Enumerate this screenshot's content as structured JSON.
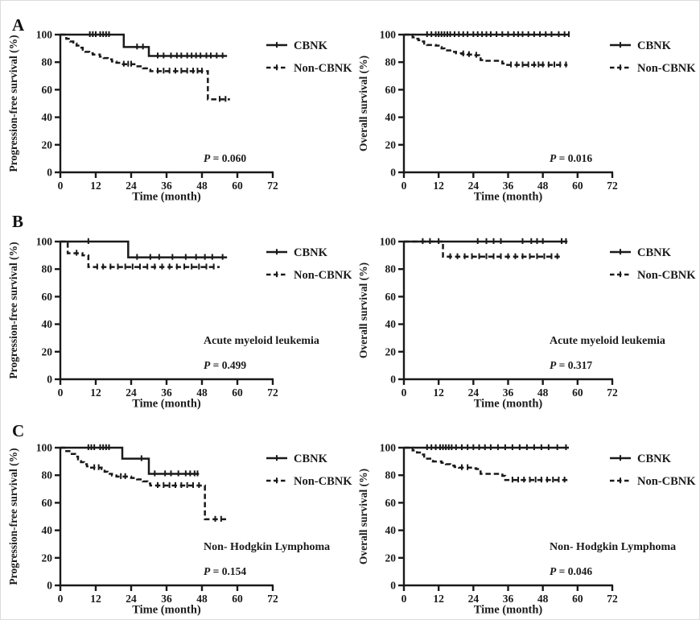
{
  "panels": [
    {
      "letter": "A"
    },
    {
      "letter": "B"
    },
    {
      "letter": "C"
    }
  ],
  "colors": {
    "ink": "#1a1a1a",
    "background": "#ffffff",
    "frame_border": "#dcdcdc"
  },
  "chart_data": [
    {
      "type": "line",
      "subtype": "kaplan-meier-step",
      "panel": "A",
      "column": "left",
      "ylabel": "Progression-free survival (%)",
      "xlabel": "Time (month)",
      "xlim": [
        0,
        72
      ],
      "ylim": [
        0,
        100
      ],
      "xticks": [
        0,
        12,
        24,
        36,
        48,
        60,
        72
      ],
      "yticks": [
        0,
        20,
        40,
        60,
        80,
        100
      ],
      "grid": false,
      "legend_position": "right-of-plot",
      "annotation": "",
      "p_label": "P = 0.060",
      "series": [
        {
          "name": "CBNK",
          "line": "solid",
          "steps": [
            [
              0,
              100
            ],
            [
              21.5,
              100
            ],
            [
              21.5,
              91
            ],
            [
              30,
              91
            ],
            [
              30,
              84.5
            ],
            [
              56.5,
              84.5
            ]
          ],
          "censor_times": [
            10,
            11,
            12,
            13.5,
            14.5,
            15.5,
            16.5,
            26,
            28,
            33,
            35,
            37.5,
            39.5,
            41,
            43,
            44.5,
            46,
            47.5,
            49.5,
            51,
            53,
            55
          ]
        },
        {
          "name": "Non-CBNK",
          "line": "dashed",
          "steps": [
            [
              0,
              100
            ],
            [
              2,
              97
            ],
            [
              3.3,
              95
            ],
            [
              4.4,
              93.5
            ],
            [
              5.5,
              92
            ],
            [
              6.5,
              90.5
            ],
            [
              7.6,
              89
            ],
            [
              8.5,
              87.5
            ],
            [
              9.8,
              86.5
            ],
            [
              11,
              85.5
            ],
            [
              13.4,
              84
            ],
            [
              14.7,
              83
            ],
            [
              16.1,
              82
            ],
            [
              17.5,
              80.5
            ],
            [
              19,
              79.5
            ],
            [
              20.5,
              78.5
            ],
            [
              25.5,
              77
            ],
            [
              28,
              75.5
            ],
            [
              29.8,
              74.5
            ],
            [
              30.5,
              73.5
            ],
            [
              50,
              73.5
            ],
            [
              50,
              53
            ],
            [
              57.5,
              53
            ]
          ],
          "censor_times": [
            21.5,
            23,
            24,
            33,
            35,
            37,
            39,
            41,
            43,
            45,
            46.5,
            48,
            54,
            56
          ]
        }
      ]
    },
    {
      "type": "line",
      "subtype": "kaplan-meier-step",
      "panel": "A",
      "column": "right",
      "ylabel": "Overall survival (%)",
      "xlabel": "Time (month)",
      "xlim": [
        0,
        72
      ],
      "ylim": [
        0,
        100
      ],
      "xticks": [
        0,
        12,
        24,
        36,
        48,
        60,
        72
      ],
      "yticks": [
        0,
        20,
        40,
        60,
        80,
        100
      ],
      "grid": false,
      "legend_position": "right-of-plot",
      "annotation": "",
      "p_label": "P = 0.016",
      "series": [
        {
          "name": "CBNK",
          "line": "solid",
          "steps": [
            [
              0,
              100
            ],
            [
              57,
              100
            ]
          ],
          "censor_times": [
            8,
            9.5,
            11,
            12,
            13,
            14,
            15,
            16,
            17.5,
            19,
            20.5,
            22,
            24,
            25.5,
            27,
            28.5,
            30,
            32,
            34,
            36,
            38,
            39.5,
            41,
            43,
            45,
            47,
            49,
            51,
            53.5,
            55.5,
            57
          ]
        },
        {
          "name": "Non-CBNK",
          "line": "dashed",
          "steps": [
            [
              0,
              100
            ],
            [
              3,
              98
            ],
            [
              4,
              97
            ],
            [
              5,
              96
            ],
            [
              6,
              95
            ],
            [
              7,
              93.5
            ],
            [
              8,
              92.5
            ],
            [
              11,
              92
            ],
            [
              12,
              91
            ],
            [
              13,
              90
            ],
            [
              14,
              88.5
            ],
            [
              16.5,
              87.5
            ],
            [
              18,
              86.5
            ],
            [
              20,
              86
            ],
            [
              22,
              85.5
            ],
            [
              24,
              85
            ],
            [
              26,
              84.6
            ],
            [
              26.5,
              81.5
            ],
            [
              28,
              81
            ],
            [
              33,
              80.5
            ],
            [
              34,
              79
            ],
            [
              35,
              78
            ],
            [
              56.5,
              78
            ]
          ],
          "censor_times": [
            20.5,
            22.5,
            25,
            37,
            39,
            41,
            43,
            45,
            46.5,
            48,
            50,
            52,
            54,
            56
          ]
        }
      ]
    },
    {
      "type": "line",
      "subtype": "kaplan-meier-step",
      "panel": "B",
      "column": "left",
      "ylabel": "Progression-free survival (%)",
      "xlabel": "Time (month)",
      "xlim": [
        0,
        72
      ],
      "ylim": [
        0,
        100
      ],
      "xticks": [
        0,
        12,
        24,
        36,
        48,
        60,
        72
      ],
      "yticks": [
        0,
        20,
        40,
        60,
        80,
        100
      ],
      "grid": false,
      "legend_position": "right-of-plot",
      "annotation": "Acute myeloid leukemia",
      "p_label": "P = 0.499",
      "series": [
        {
          "name": "CBNK",
          "line": "solid",
          "steps": [
            [
              0,
              100
            ],
            [
              23,
              100
            ],
            [
              23,
              88.5
            ],
            [
              56.5,
              88.5
            ]
          ],
          "censor_times": [
            9.5,
            26,
            30.5,
            33.5,
            38,
            42.5,
            46,
            49,
            51.5,
            55
          ]
        },
        {
          "name": "Non-CBNK",
          "line": "dashed",
          "steps": [
            [
              0,
              100
            ],
            [
              2.5,
              91.5
            ],
            [
              7.5,
              90
            ],
            [
              9.5,
              81.5
            ],
            [
              54,
              81.5
            ]
          ],
          "censor_times": [
            5.5,
            12.5,
            14.5,
            17,
            19.5,
            22,
            24.5,
            27,
            29.5,
            32,
            34.5,
            37,
            39.5,
            42,
            44.5,
            47,
            49.5,
            52
          ]
        }
      ]
    },
    {
      "type": "line",
      "subtype": "kaplan-meier-step",
      "panel": "B",
      "column": "right",
      "ylabel": "Overall survival (%)",
      "xlabel": "Time (month)",
      "xlim": [
        0,
        72
      ],
      "ylim": [
        0,
        100
      ],
      "xticks": [
        0,
        12,
        24,
        36,
        48,
        60,
        72
      ],
      "yticks": [
        0,
        20,
        40,
        60,
        80,
        100
      ],
      "grid": false,
      "legend_position": "right-of-plot",
      "annotation": "Acute myeloid leukemia",
      "p_label": "P = 0.317",
      "series": [
        {
          "name": "CBNK",
          "line": "solid",
          "steps": [
            [
              0,
              100
            ],
            [
              56.5,
              100
            ]
          ],
          "censor_times": [
            6.5,
            9,
            12,
            25.5,
            28.5,
            31,
            33.5,
            41,
            44,
            46,
            48,
            54.5,
            56
          ]
        },
        {
          "name": "Non-CBNK",
          "line": "dashed",
          "steps": [
            [
              0,
              100
            ],
            [
              13.5,
              100
            ],
            [
              13.5,
              89
            ],
            [
              54.5,
              89
            ]
          ],
          "censor_times": [
            16,
            18.5,
            21,
            23.5,
            26,
            28.5,
            31,
            33.5,
            36,
            38.5,
            41,
            43.5,
            46,
            48.5,
            51,
            53
          ]
        }
      ]
    },
    {
      "type": "line",
      "subtype": "kaplan-meier-step",
      "panel": "C",
      "column": "left",
      "ylabel": "Progression-free survival (%)",
      "xlabel": "Time (month)",
      "xlim": [
        0,
        72
      ],
      "ylim": [
        0,
        100
      ],
      "xticks": [
        0,
        12,
        24,
        36,
        48,
        60,
        72
      ],
      "yticks": [
        0,
        20,
        40,
        60,
        80,
        100
      ],
      "grid": false,
      "legend_position": "right-of-plot",
      "annotation": "Non- Hodgkin Lymphoma",
      "p_label": "P = 0.154",
      "series": [
        {
          "name": "CBNK",
          "line": "solid",
          "steps": [
            [
              0,
              100
            ],
            [
              21,
              100
            ],
            [
              21,
              92
            ],
            [
              30,
              92
            ],
            [
              30,
              81
            ],
            [
              47,
              81
            ]
          ],
          "censor_times": [
            9.5,
            10.5,
            11.5,
            13.5,
            14.5,
            15.5,
            16.5,
            27.5,
            32,
            35.5,
            37.5,
            40,
            42.5,
            44,
            45.5,
            46.5
          ]
        },
        {
          "name": "Non-CBNK",
          "line": "dashed",
          "steps": [
            [
              0,
              100
            ],
            [
              2,
              97.5
            ],
            [
              3.5,
              95.5
            ],
            [
              5,
              93.5
            ],
            [
              6,
              91.5
            ],
            [
              7,
              89.5
            ],
            [
              8,
              88
            ],
            [
              9,
              86.5
            ],
            [
              10,
              85.5
            ],
            [
              14,
              84.5
            ],
            [
              15,
              82.5
            ],
            [
              16,
              81
            ],
            [
              17.5,
              79.8
            ],
            [
              19,
              79
            ],
            [
              24,
              78
            ],
            [
              26,
              77
            ],
            [
              28,
              75.5
            ],
            [
              29.5,
              74
            ],
            [
              30.5,
              72.5
            ],
            [
              49,
              72.5
            ],
            [
              49,
              48
            ],
            [
              56.6,
              48
            ]
          ],
          "censor_times": [
            11.5,
            13,
            20.5,
            22,
            33,
            35,
            37,
            39,
            41,
            43,
            45,
            47,
            52.5,
            54.5
          ]
        }
      ]
    },
    {
      "type": "line",
      "subtype": "kaplan-meier-step",
      "panel": "C",
      "column": "right",
      "ylabel": "Overall survival (%)",
      "xlabel": "Time (month)",
      "xlim": [
        0,
        72
      ],
      "ylim": [
        0,
        100
      ],
      "xticks": [
        0,
        12,
        24,
        36,
        48,
        60,
        72
      ],
      "yticks": [
        0,
        20,
        40,
        60,
        80,
        100
      ],
      "grid": false,
      "legend_position": "right-of-plot",
      "annotation": "Non- Hodgkin Lymphoma",
      "p_label": "P = 0.046",
      "series": [
        {
          "name": "CBNK",
          "line": "solid",
          "steps": [
            [
              0,
              100
            ],
            [
              57,
              100
            ]
          ],
          "censor_times": [
            8,
            9.5,
            11,
            12.5,
            13.5,
            14.5,
            15.5,
            16.5,
            18,
            20,
            22,
            24,
            26,
            28,
            30,
            32.5,
            35,
            37.5,
            40,
            42.5,
            45,
            47.5,
            50,
            53,
            56
          ]
        },
        {
          "name": "Non-CBNK",
          "line": "dashed",
          "steps": [
            [
              0,
              100
            ],
            [
              3,
              98
            ],
            [
              4.5,
              96.5
            ],
            [
              6,
              95
            ],
            [
              7,
              93.5
            ],
            [
              8,
              92
            ],
            [
              9.5,
              90.5
            ],
            [
              10,
              90
            ],
            [
              13,
              89
            ],
            [
              14.5,
              88
            ],
            [
              16,
              87
            ],
            [
              17.5,
              86
            ],
            [
              19,
              85.5
            ],
            [
              24,
              85
            ],
            [
              25,
              84.5
            ],
            [
              26.5,
              81
            ],
            [
              33,
              80.5
            ],
            [
              34,
              79.5
            ],
            [
              35,
              76.5
            ],
            [
              57,
              76.5
            ]
          ],
          "censor_times": [
            20,
            22,
            37.5,
            39.5,
            41.5,
            43.5,
            45.5,
            47.5,
            49.5,
            51.5,
            53.5,
            55.5
          ]
        }
      ]
    }
  ]
}
